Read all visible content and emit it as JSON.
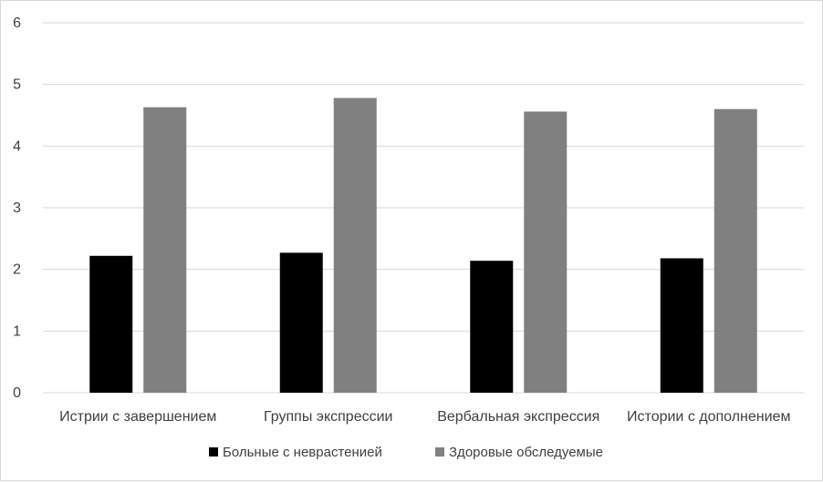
{
  "chart_data": {
    "type": "bar",
    "categories": [
      "Истрии с завершением",
      "Группы экспрессии",
      "Вербальная экспрессия",
      "Истории с дополнением"
    ],
    "series": [
      {
        "name": "Больные с неврастенией",
        "values": [
          2.22,
          2.27,
          2.14,
          2.18
        ],
        "color": "#000000"
      },
      {
        "name": "Здоровые обследуемые",
        "values": [
          4.63,
          4.78,
          4.56,
          4.6
        ],
        "color": "#808080"
      }
    ],
    "title": "",
    "xlabel": "",
    "ylabel": "",
    "ylim": [
      0,
      6
    ],
    "yticks": [
      "0",
      "1",
      "2",
      "3",
      "4",
      "5",
      "6"
    ],
    "grid": true,
    "legend_position": "bottom"
  },
  "colors": {
    "gridline": "#d9d9d9",
    "text": "#404040"
  }
}
